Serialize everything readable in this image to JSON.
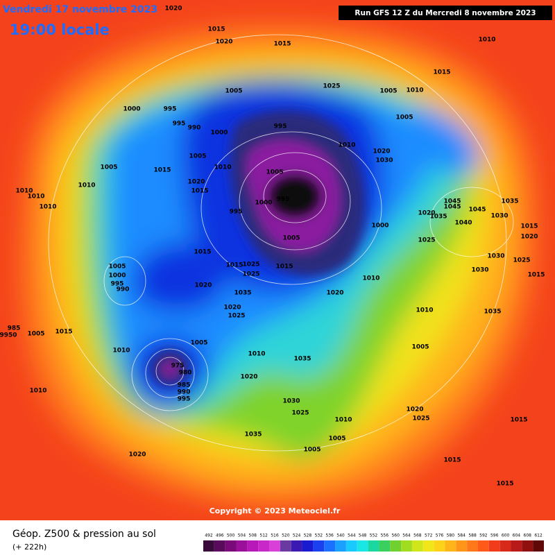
{
  "header": {
    "date": "Vendredi 17 novembre 2023",
    "time": "19:00 locale",
    "run": "Run GFS 12 Z du Mercredi 8 novembre 2023"
  },
  "map": {
    "copyright": "Copyright © 2023 Meteociel.fr",
    "isobar_labels": [
      1020,
      1015,
      1020,
      1015,
      1010,
      1015,
      1025,
      1005,
      1010,
      1005,
      1000,
      995,
      995,
      990,
      1000,
      995,
      1010,
      1020,
      1030,
      1005,
      1005,
      1010,
      1015,
      1005,
      1010,
      1020,
      1015,
      1005,
      995,
      1000,
      995,
      1010,
      1010,
      1010,
      1005,
      1000,
      1020,
      1035,
      1045,
      1045,
      1045,
      1035,
      1030,
      1040,
      1015,
      1020,
      1025,
      1030,
      1025,
      1030,
      1015,
      1015,
      1015,
      1025,
      1015,
      1025,
      1010,
      1005,
      1000,
      995,
      990,
      1020,
      1035,
      1020,
      1020,
      1025,
      1010,
      1035,
      985,
      9950,
      1005,
      1015,
      1010,
      1005,
      1010,
      1035,
      1005,
      975,
      980,
      985,
      990,
      995,
      1020,
      1010,
      1030,
      1025,
      1010,
      1020,
      1025,
      1035,
      1005,
      1005,
      1015,
      1020,
      1015,
      1015
    ]
  },
  "footer": {
    "title": "Géop. Z500 & pression au sol",
    "lead": "(+ 222h)",
    "scale": [
      492,
      496,
      500,
      504,
      508,
      512,
      516,
      520,
      524,
      528,
      532,
      536,
      540,
      544,
      548,
      552,
      556,
      560,
      564,
      568,
      572,
      576,
      580,
      584,
      588,
      592,
      596,
      600,
      604,
      608,
      612
    ]
  }
}
